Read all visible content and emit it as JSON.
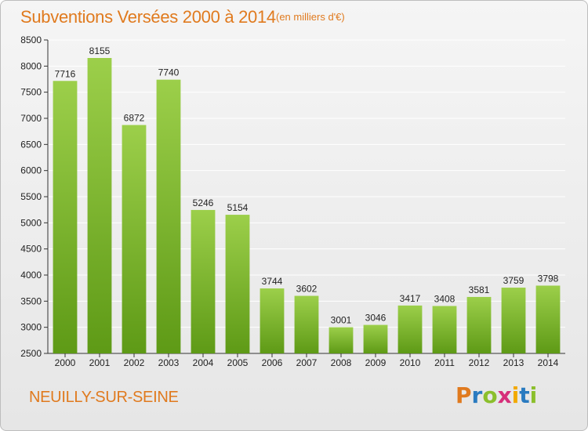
{
  "header": {
    "title": "Subventions Versées 2000 à 2014",
    "unit_note": "(en milliers d'€)"
  },
  "footer": {
    "commune": "NEUILLY-SUR-SEINE",
    "logo_letters": [
      "P",
      "r",
      "o",
      "x",
      "i",
      "t",
      "i"
    ],
    "logo_colors": [
      "#e07a1e",
      "#2a7bc0",
      "#8bbf2c",
      "#d62f7a",
      "#f2a900",
      "#2a7bc0",
      "#8bbf2c"
    ]
  },
  "colors": {
    "bar_top": "#9ccf4a",
    "bar_bottom": "#5e9a16",
    "title": "#e07a1e",
    "grid": "#ffffff"
  },
  "chart_data": {
    "type": "bar",
    "categories": [
      "2000",
      "2001",
      "2002",
      "2003",
      "2004",
      "2005",
      "2006",
      "2007",
      "2008",
      "2009",
      "2010",
      "2011",
      "2012",
      "2013",
      "2014"
    ],
    "values": [
      7716,
      8155,
      6872,
      7740,
      5246,
      5154,
      3744,
      3602,
      3001,
      3046,
      3417,
      3408,
      3581,
      3759,
      3798
    ],
    "yticks": [
      2500,
      3000,
      3500,
      4000,
      4500,
      5000,
      5500,
      6000,
      6500,
      7000,
      7500,
      8000,
      8500
    ],
    "ylim": [
      2500,
      8500
    ],
    "grid": true,
    "data_labels": true
  }
}
